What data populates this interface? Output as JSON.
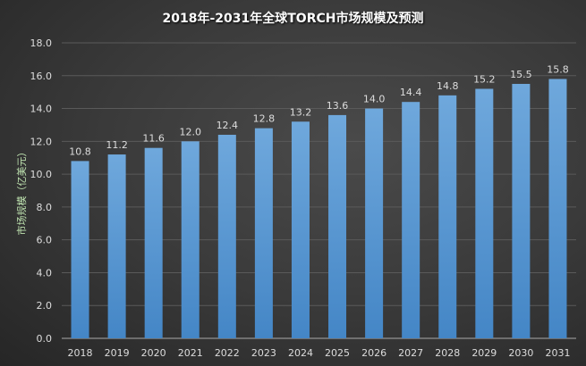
{
  "chart_data": {
    "type": "bar",
    "title": "2018年-2031年全球TORCH市场规模及预测",
    "xlabel": "",
    "ylabel": "市场规模（亿美元）",
    "categories": [
      "2018",
      "2019",
      "2020",
      "2021",
      "2022",
      "2023",
      "2024",
      "2025",
      "2026",
      "2027",
      "2028",
      "2029",
      "2030",
      "2031"
    ],
    "values": [
      10.8,
      11.2,
      11.6,
      12.0,
      12.4,
      12.8,
      13.2,
      13.6,
      14.0,
      14.4,
      14.8,
      15.2,
      15.5,
      15.8
    ],
    "ylim": [
      0,
      18
    ],
    "yticks": [
      "0.0",
      "2.0",
      "4.0",
      "6.0",
      "8.0",
      "10.0",
      "12.0",
      "14.0",
      "16.0",
      "18.0"
    ],
    "grid": true,
    "bar_color": "#5b9bd5"
  }
}
